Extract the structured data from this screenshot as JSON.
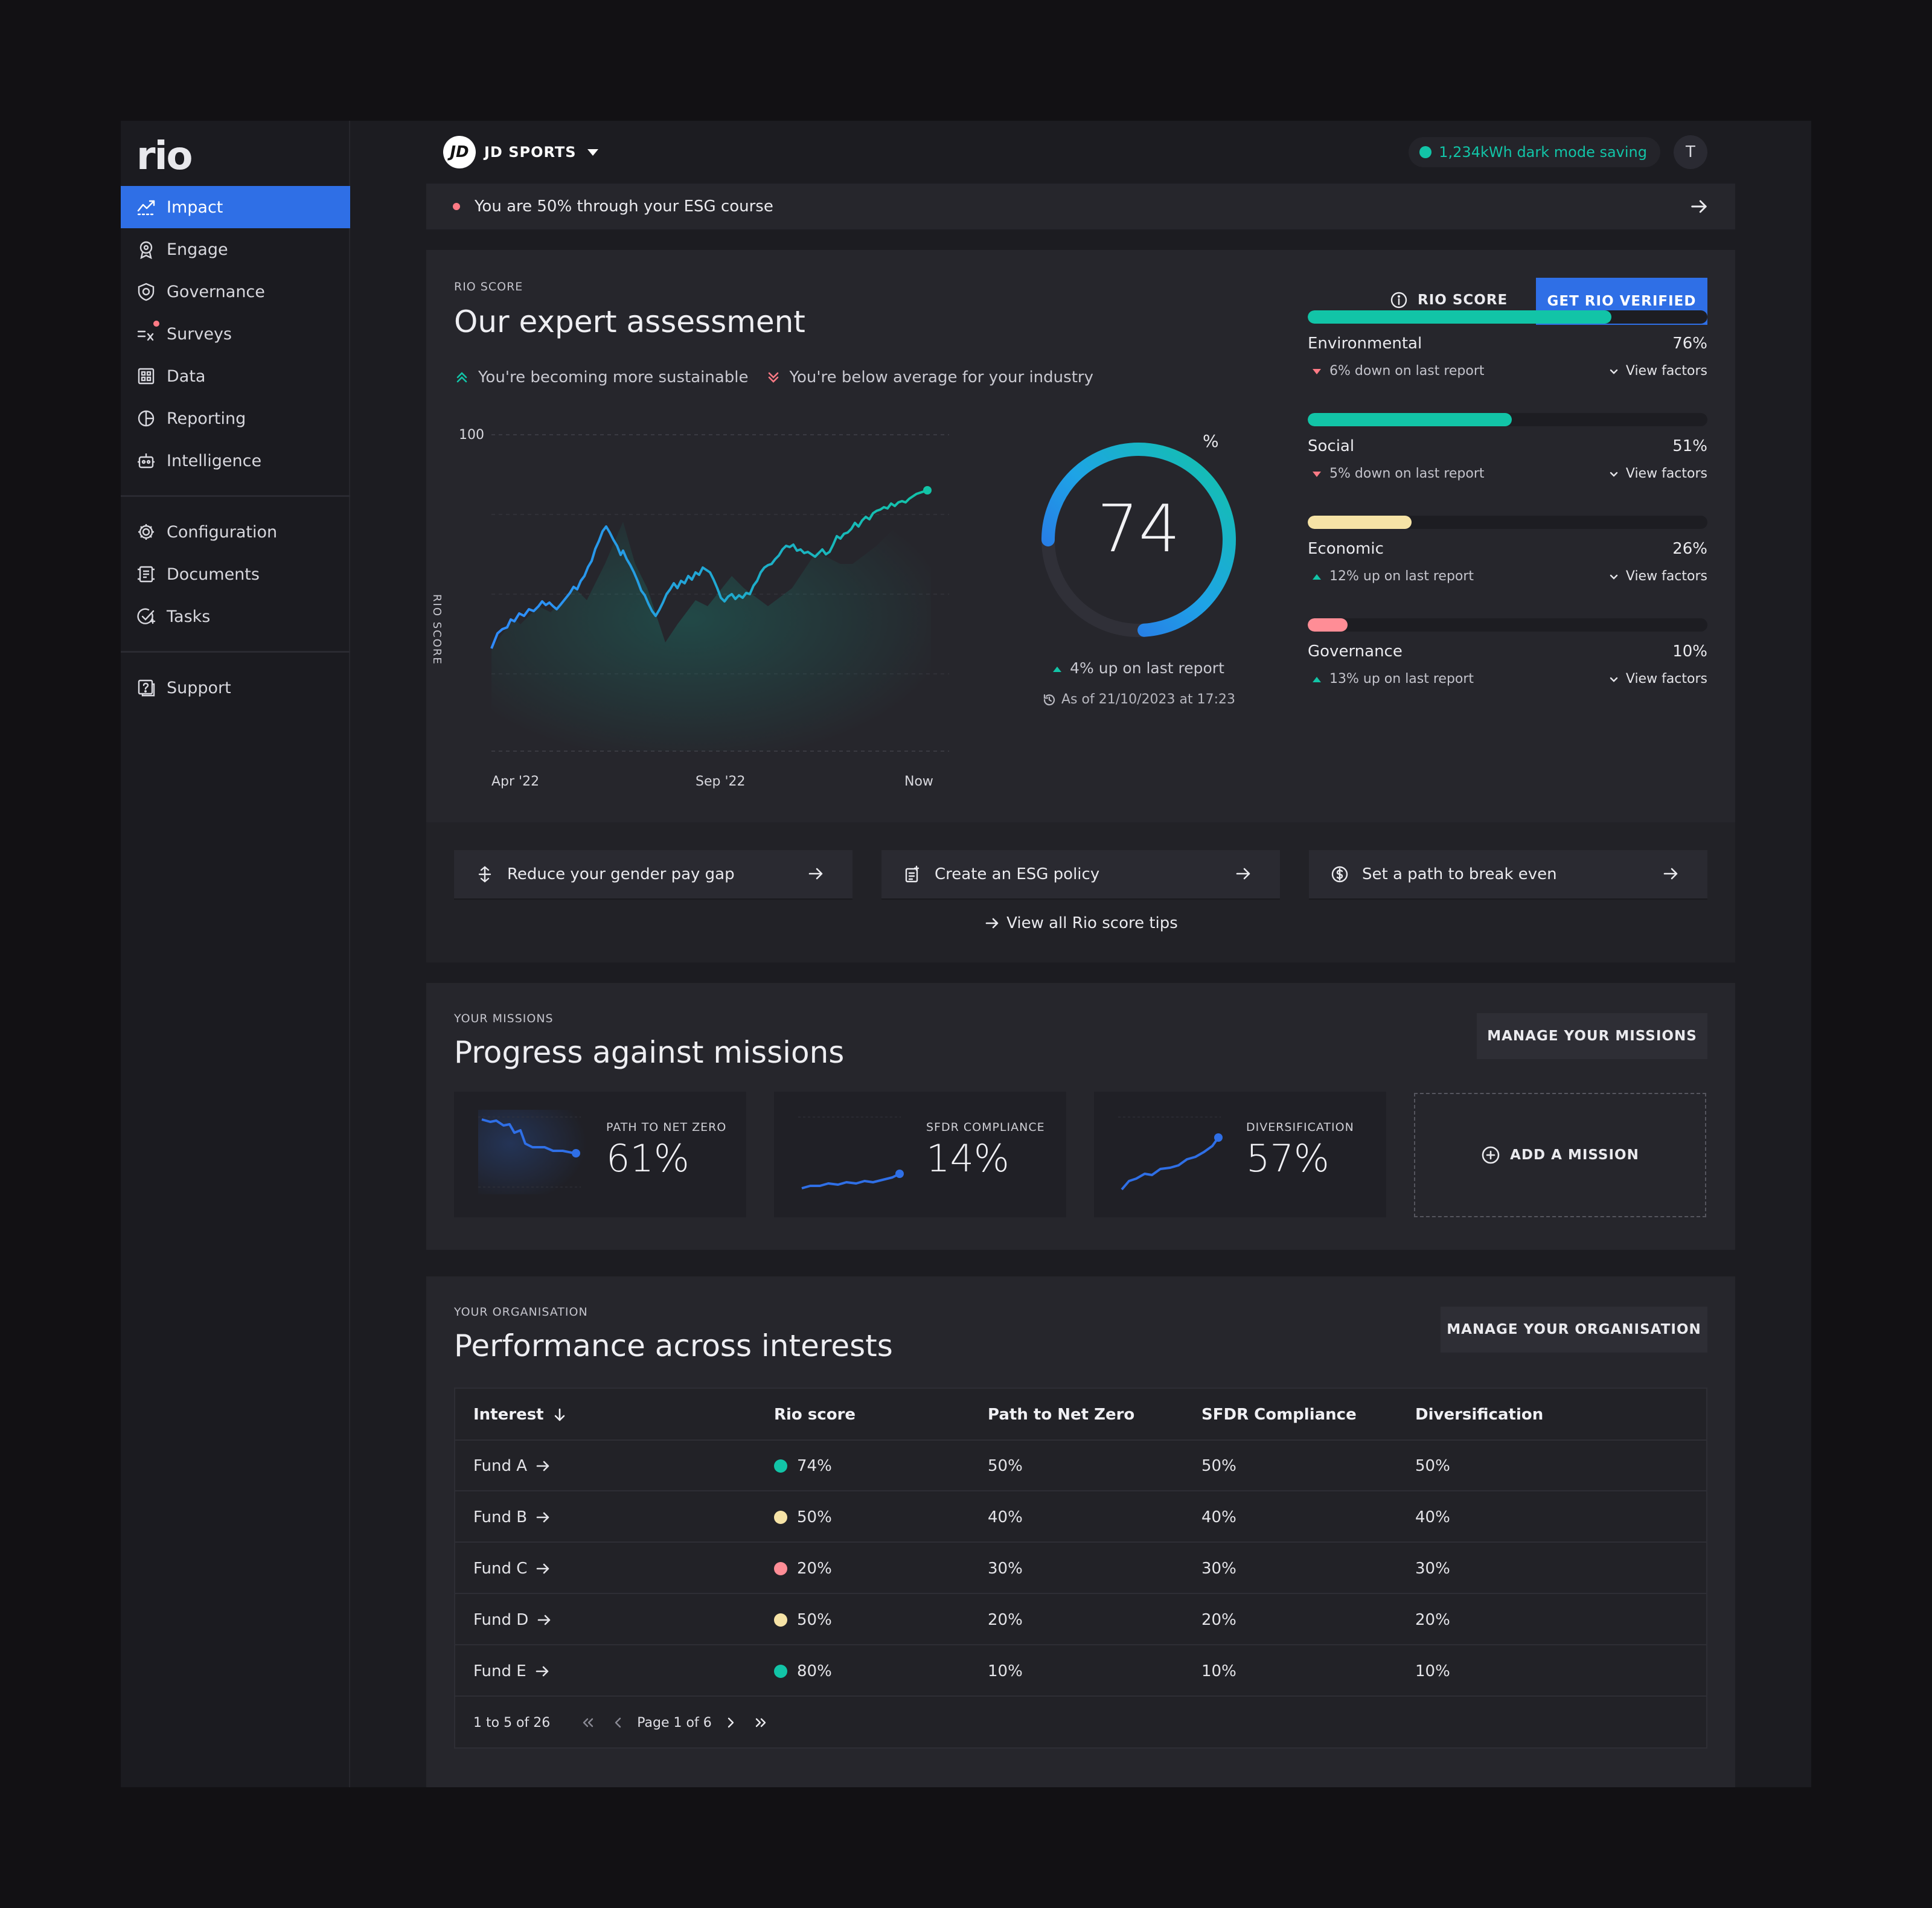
{
  "app": {
    "logo": "rio"
  },
  "sidebar": {
    "primary": [
      {
        "label": "Impact",
        "icon": "impact-icon",
        "active": true
      },
      {
        "label": "Engage",
        "icon": "engage-icon"
      },
      {
        "label": "Governance",
        "icon": "governance-icon"
      },
      {
        "label": "Surveys",
        "icon": "surveys-icon",
        "badge": true
      },
      {
        "label": "Data",
        "icon": "data-icon"
      },
      {
        "label": "Reporting",
        "icon": "reporting-icon"
      },
      {
        "label": "Intelligence",
        "icon": "intelligence-icon"
      }
    ],
    "secondary": [
      {
        "label": "Configuration",
        "icon": "gear-icon"
      },
      {
        "label": "Documents",
        "icon": "documents-icon"
      },
      {
        "label": "Tasks",
        "icon": "tasks-icon"
      }
    ],
    "tertiary": [
      {
        "label": "Support",
        "icon": "support-icon"
      }
    ]
  },
  "header": {
    "org_logo": "JD",
    "org_name": "JD SPORTS",
    "saving": "1,234kWh dark mode saving",
    "avatar": "T"
  },
  "banner": {
    "text": "You are 50% through your ESG course"
  },
  "score": {
    "eyebrow": "RIO SCORE",
    "title": "Our expert assessment",
    "trend_up": "You're becoming more sustainable",
    "trend_down": "You're below average for your industry",
    "link": "RIO SCORE",
    "verify": "GET RIO VERIFIED",
    "chart": {
      "y_top": "100",
      "ylabel": "RIO SCORE",
      "x_ticks": [
        "Apr '22",
        "Sep '22",
        "Now"
      ]
    },
    "gauge_value": "74",
    "gauge_unit": "%",
    "gauge_fraction": 0.74,
    "change": "4% up on last report",
    "as_of": "As of 21/10/2023 at 17:23",
    "pillars": [
      {
        "name": "Environmental",
        "value": "76%",
        "fraction": 0.76,
        "color": "#12c4a7",
        "direction": "down",
        "change": "6% down on last report",
        "factors": "View factors"
      },
      {
        "name": "Social",
        "value": "51%",
        "fraction": 0.51,
        "color": "#12c4a7",
        "direction": "down",
        "change": "5% down on last report",
        "factors": "View factors"
      },
      {
        "name": "Economic",
        "value": "26%",
        "fraction": 0.26,
        "color": "#f6e3a6",
        "direction": "up",
        "change": "12% up on last report",
        "factors": "View factors"
      },
      {
        "name": "Governance",
        "value": "10%",
        "fraction": 0.1,
        "color": "#ff8d96",
        "direction": "up",
        "change": "13% up on last report",
        "factors": "View factors"
      }
    ],
    "tips": [
      {
        "label": "Reduce your gender pay gap",
        "icon": "scale-icon"
      },
      {
        "label": "Create an ESG policy",
        "icon": "policy-icon"
      },
      {
        "label": "Set a path to break even",
        "icon": "dollar-icon"
      }
    ],
    "view_tips": "View all Rio score tips"
  },
  "missions": {
    "eyebrow": "YOUR MISSIONS",
    "title": "Progress against missions",
    "manage": "MANAGE YOUR MISSIONS",
    "items": [
      {
        "label": "PATH TO NET ZERO",
        "value": "61%"
      },
      {
        "label": "SFDR COMPLIANCE",
        "value": "14%"
      },
      {
        "label": "DIVERSIFICATION",
        "value": "57%"
      }
    ],
    "add": "ADD A MISSION"
  },
  "organisation": {
    "eyebrow": "YOUR ORGANISATION",
    "title": "Performance across interests",
    "manage": "MANAGE YOUR ORGANISATION",
    "columns": [
      "Interest",
      "Rio score",
      "Path to Net Zero",
      "SFDR Compliance",
      "Diversification"
    ],
    "rows": [
      {
        "name": "Fund A",
        "score": "74%",
        "color": "#12c4a7",
        "netzero": "50%",
        "sfdr": "50%",
        "div": "50%"
      },
      {
        "name": "Fund B",
        "score": "50%",
        "color": "#f6e3a6",
        "netzero": "40%",
        "sfdr": "40%",
        "div": "40%"
      },
      {
        "name": "Fund C",
        "score": "20%",
        "color": "#ff8d96",
        "netzero": "30%",
        "sfdr": "30%",
        "div": "30%"
      },
      {
        "name": "Fund D",
        "score": "50%",
        "color": "#f6e3a6",
        "netzero": "20%",
        "sfdr": "20%",
        "div": "20%"
      },
      {
        "name": "Fund E",
        "score": "80%",
        "color": "#12c4a7",
        "netzero": "10%",
        "sfdr": "10%",
        "div": "10%"
      }
    ],
    "pager": {
      "range": "1 to 5 of 26",
      "page": "Page 1 of 6"
    }
  }
}
